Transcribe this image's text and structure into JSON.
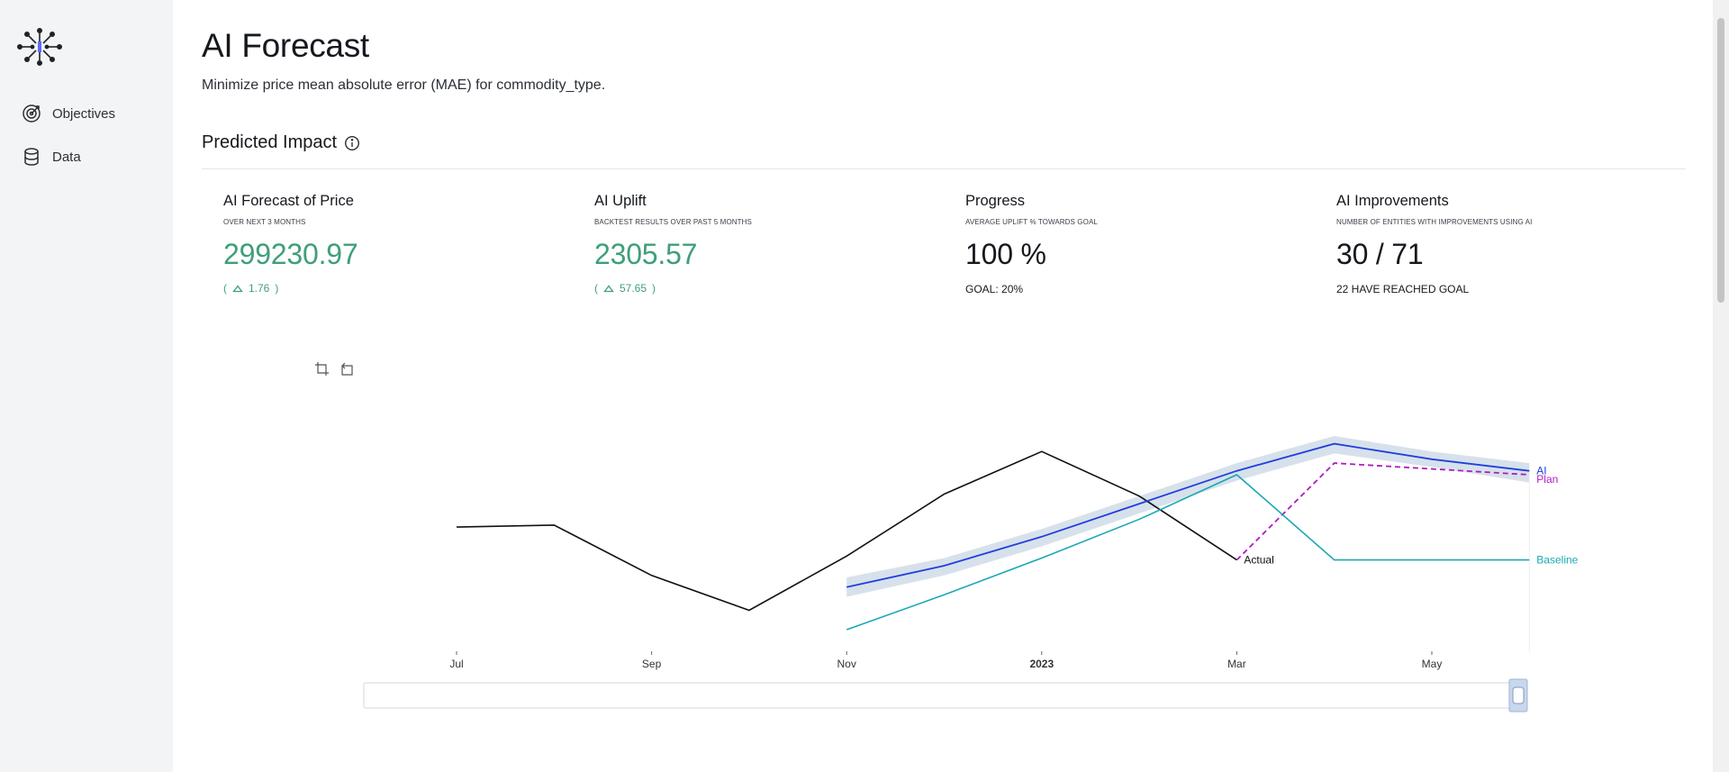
{
  "nav": {
    "items": [
      {
        "label": "Objectives",
        "icon": "target-icon"
      },
      {
        "label": "Data",
        "icon": "database-icon"
      }
    ]
  },
  "header": {
    "title": "AI Forecast",
    "subtitle": "Minimize price mean absolute error (MAE) for commodity_type."
  },
  "section": {
    "title": "Predicted Impact"
  },
  "cards": [
    {
      "title": "AI Forecast of Price",
      "subtitle": "OVER NEXT 3 MONTHS",
      "value": "299230.97",
      "delta": "1.76"
    },
    {
      "title": "AI Uplift",
      "subtitle": "BACKTEST RESULTS OVER PAST 5 MONTHS",
      "value": "2305.57",
      "delta": "57.65"
    },
    {
      "title": "Progress",
      "subtitle": "AVERAGE UPLIFT % TOWARDS GOAL",
      "value": "100 %",
      "note": "GOAL: 20%"
    },
    {
      "title": "AI Improvements",
      "subtitle": "NUMBER OF ENTITIES WITH IMPROVEMENTS USING AI",
      "value": "30 / 71",
      "note": "22 HAVE REACHED GOAL"
    }
  ],
  "colors": {
    "positive": "#3f9f78",
    "actual": "#111111",
    "ai": "#1f3fe0",
    "plan": "#b01cc0",
    "baseline": "#1aa8b4",
    "band": "#c9d7e4"
  },
  "chart_data": {
    "type": "line",
    "x_ticks": [
      "Jul",
      "Sep",
      "Nov",
      "2023",
      "Mar",
      "May"
    ],
    "series": [
      {
        "name": "Actual",
        "x": [
          "2022-07",
          "2022-08",
          "2022-09",
          "2022-10",
          "2022-11",
          "2022-12",
          "2023-01",
          "2023-02",
          "2023-03"
        ],
        "values": [
          0.53,
          0.54,
          0.28,
          0.1,
          0.38,
          0.7,
          0.92,
          0.69,
          0.36
        ]
      },
      {
        "name": "AI",
        "x": [
          "2022-11",
          "2022-12",
          "2023-01",
          "2023-02",
          "2023-03",
          "2023-04",
          "2023-05",
          "2023-06"
        ],
        "values": [
          0.22,
          0.33,
          0.48,
          0.65,
          0.82,
          0.96,
          0.88,
          0.82
        ]
      },
      {
        "name": "Plan",
        "x": [
          "2023-03",
          "2023-04",
          "2023-05",
          "2023-06"
        ],
        "values": [
          0.36,
          0.86,
          0.83,
          0.8
        ]
      },
      {
        "name": "Baseline",
        "x": [
          "2022-11",
          "2022-12",
          "2023-01",
          "2023-02",
          "2023-03",
          "2023-04",
          "2023-05",
          "2023-06"
        ],
        "values": [
          0.0,
          0.18,
          0.37,
          0.57,
          0.8,
          0.36,
          0.36,
          0.36
        ]
      }
    ],
    "ai_band": {
      "x": [
        "2022-11",
        "2022-12",
        "2023-01",
        "2023-02",
        "2023-03",
        "2023-04",
        "2023-05",
        "2023-06"
      ],
      "upper": [
        0.27,
        0.37,
        0.52,
        0.69,
        0.86,
        1.0,
        0.92,
        0.86
      ],
      "lower": [
        0.17,
        0.28,
        0.43,
        0.6,
        0.77,
        0.91,
        0.84,
        0.76
      ]
    },
    "y_axis": "hidden",
    "grid": false,
    "legend": "end-labels"
  }
}
